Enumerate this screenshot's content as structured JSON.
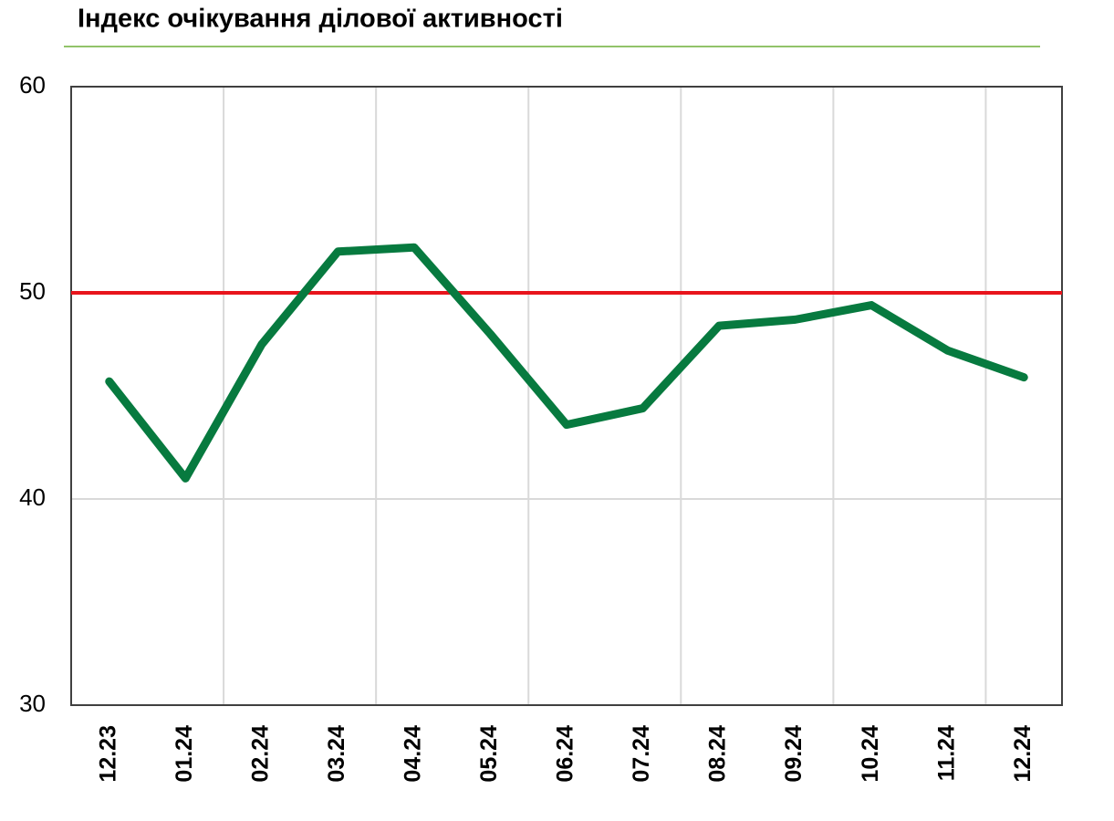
{
  "chart_data": {
    "type": "line",
    "title": "Індекс очікування ділової активності",
    "categories": [
      "12.23",
      "01.24",
      "02.24",
      "03.24",
      "04.24",
      "05.24",
      "06.24",
      "07.24",
      "08.24",
      "09.24",
      "10.24",
      "11.24",
      "12.24"
    ],
    "series": [
      {
        "color": "#077a3f",
        "values": [
          45.7,
          41.0,
          47.5,
          52.0,
          52.2,
          48.0,
          43.6,
          44.4,
          48.4,
          48.7,
          49.4,
          47.2,
          45.9
        ]
      }
    ],
    "reference_line": {
      "value": 50,
      "color": "#e8141c"
    },
    "ylim": [
      30,
      60
    ],
    "yticks": [
      30,
      40,
      50,
      60
    ],
    "grid": true
  }
}
